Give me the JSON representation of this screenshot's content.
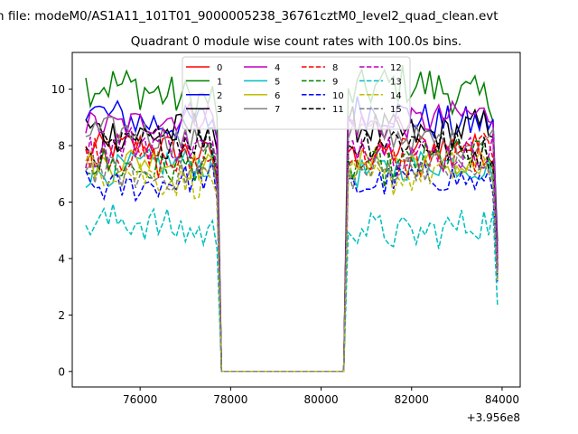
{
  "chart_data": {
    "type": "line",
    "suptitle": "n file: modeM0/AS1A11_101T01_9000005238_36761cztM0_level2_quad_clean.evt",
    "title": "Quadrant 0 module wise count rates with 100.0s bins.",
    "xlabel": "",
    "ylabel": "",
    "x_offset_label": "+3.956e8",
    "xlim": [
      74500,
      84400
    ],
    "ylim": [
      -0.55,
      11.3
    ],
    "x_ticks": [
      76000,
      78000,
      80000,
      82000,
      84000
    ],
    "x_tick_labels": [
      "76000",
      "78000",
      "80000",
      "82000",
      "84000"
    ],
    "y_ticks": [
      0,
      2,
      4,
      6,
      8,
      10
    ],
    "y_tick_labels": [
      "0",
      "2",
      "4",
      "6",
      "8",
      "10"
    ],
    "grid": false,
    "legend_position": "top-center",
    "legend_columns": 4,
    "x_start": 74800,
    "x_step": 100,
    "gap": {
      "start": 77800,
      "end": 80500,
      "value": 0
    },
    "series": [
      {
        "name": "0",
        "color": "#ff0000",
        "style": "solid",
        "mean": 7.8,
        "amp": 0.25,
        "edge": 3.6
      },
      {
        "name": "1",
        "color": "#008000",
        "style": "solid",
        "mean": 9.9,
        "amp": 0.35,
        "edge": 4.6
      },
      {
        "name": "2",
        "color": "#0000ff",
        "style": "solid",
        "mean": 9.0,
        "amp": 0.3,
        "edge": 4.2
      },
      {
        "name": "3",
        "color": "#000000",
        "style": "solid",
        "mean": 8.6,
        "amp": 0.3,
        "edge": 4.0
      },
      {
        "name": "4",
        "color": "#bf00bf",
        "style": "solid",
        "mean": 8.9,
        "amp": 0.25,
        "edge": 4.1
      },
      {
        "name": "5",
        "color": "#00bfbf",
        "style": "solid",
        "mean": 7.2,
        "amp": 0.25,
        "edge": 3.3
      },
      {
        "name": "6",
        "color": "#bfbf00",
        "style": "solid",
        "mean": 7.3,
        "amp": 0.25,
        "edge": 3.4
      },
      {
        "name": "7",
        "color": "#808080",
        "style": "solid",
        "mean": 8.3,
        "amp": 0.25,
        "edge": 3.8
      },
      {
        "name": "8",
        "color": "#ff0000",
        "style": "dashed",
        "mean": 7.6,
        "amp": 0.3,
        "edge": 3.5
      },
      {
        "name": "9",
        "color": "#008000",
        "style": "dashed",
        "mean": 7.4,
        "amp": 0.3,
        "edge": 3.4
      },
      {
        "name": "10",
        "color": "#0000ff",
        "style": "dashed",
        "mean": 6.7,
        "amp": 0.25,
        "edge": 3.1
      },
      {
        "name": "11",
        "color": "#000000",
        "style": "dashed",
        "mean": 8.0,
        "amp": 0.3,
        "edge": 3.7
      },
      {
        "name": "12",
        "color": "#bf00bf",
        "style": "dashed",
        "mean": 7.9,
        "amp": 0.3,
        "edge": 3.6
      },
      {
        "name": "13",
        "color": "#00bfbf",
        "style": "dashed",
        "mean": 5.1,
        "amp": 0.3,
        "edge": 2.3
      },
      {
        "name": "14",
        "color": "#bfbf00",
        "style": "dashed",
        "mean": 7.0,
        "amp": 0.3,
        "edge": 3.2
      },
      {
        "name": "15",
        "color": "#808080",
        "style": "dashed",
        "mean": 7.1,
        "amp": 0.25,
        "edge": 3.3
      }
    ]
  }
}
